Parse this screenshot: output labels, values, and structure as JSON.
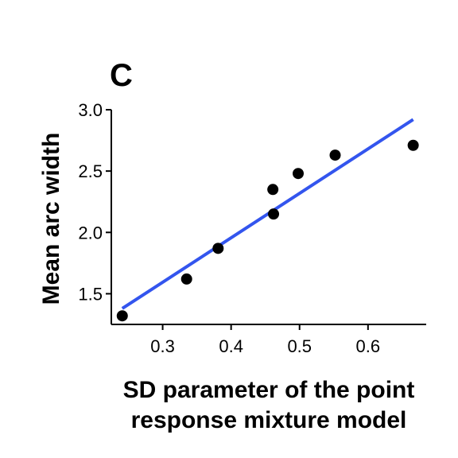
{
  "chart_data": {
    "type": "scatter",
    "panel_label": "C",
    "xlabel": [
      "SD parameter of the point",
      "response mixture model"
    ],
    "ylabel": "Mean arc width",
    "xlim": [
      0.225,
      0.685
    ],
    "ylim": [
      1.25,
      3.0
    ],
    "xticks": [
      {
        "value": 0.3,
        "label": "0.3"
      },
      {
        "value": 0.4,
        "label": "0.4"
      },
      {
        "value": 0.5,
        "label": "0.5"
      },
      {
        "value": 0.6,
        "label": "0.6"
      }
    ],
    "yticks": [
      {
        "value": 1.5,
        "label": "1.5"
      },
      {
        "value": 2.0,
        "label": "2.0"
      },
      {
        "value": 2.5,
        "label": "2.5"
      },
      {
        "value": 3.0,
        "label": "3.0"
      }
    ],
    "points": [
      {
        "x": 0.241,
        "y": 1.32
      },
      {
        "x": 0.335,
        "y": 1.62
      },
      {
        "x": 0.381,
        "y": 1.87
      },
      {
        "x": 0.461,
        "y": 2.35
      },
      {
        "x": 0.462,
        "y": 2.15
      },
      {
        "x": 0.498,
        "y": 2.48
      },
      {
        "x": 0.552,
        "y": 2.63
      },
      {
        "x": 0.666,
        "y": 2.71
      }
    ],
    "fit_line": {
      "x": [
        0.241,
        0.666
      ],
      "y": [
        1.38,
        2.92
      ]
    },
    "point_color": "#000000",
    "line_color": "#3355ee",
    "grid": false,
    "legend": "none"
  }
}
